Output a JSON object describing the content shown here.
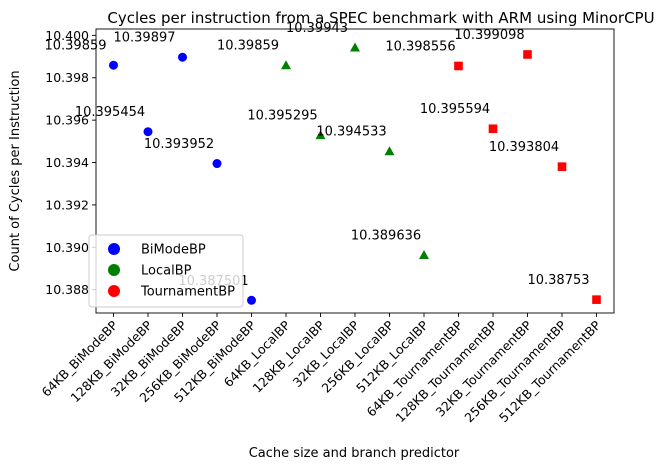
{
  "chart_data": {
    "type": "scatter",
    "title": "Cycles per instruction from a SPEC benchmark with ARM using MinorCPU",
    "xlabel": "Cache size and branch predictor",
    "ylabel": "Count of Cycles per Instruction",
    "categories": [
      "64KB_BiModeBP",
      "128KB_BiModeBP",
      "32KB_BiModeBP",
      "256KB_BiModeBP",
      "512KB_BiModeBP",
      "64KB_LocalBP",
      "128KB_LocalBP",
      "32KB_LocalBP",
      "256KB_LocalBP",
      "512KB_LocalBP",
      "64KB_TournamentBP",
      "128KB_TournamentBP",
      "32KB_TournamentBP",
      "256KB_TournamentBP",
      "512KB_TournamentBP"
    ],
    "ylim": [
      10.3869,
      10.4003
    ],
    "yticks": [
      10.388,
      10.39,
      10.392,
      10.394,
      10.396,
      10.398,
      10.4
    ],
    "ytick_labels": [
      "10.388",
      "10.390",
      "10.392",
      "10.394",
      "10.396",
      "10.398",
      "10.400"
    ],
    "grid": false,
    "legend_position": "lower-left",
    "series": [
      {
        "name": "BiModeBP",
        "color": "#0000ff",
        "marker": "circle",
        "x_index": [
          0,
          1,
          2,
          3,
          4
        ],
        "values": [
          10.39859,
          10.395454,
          10.39897,
          10.393952,
          10.387501
        ],
        "labels": [
          "10.39859",
          "10.395454",
          "10.39897",
          "10.393952",
          "10.387501"
        ]
      },
      {
        "name": "LocalBP",
        "color": "#008000",
        "marker": "triangle",
        "x_index": [
          5,
          6,
          7,
          8,
          9
        ],
        "values": [
          10.39859,
          10.395295,
          10.39943,
          10.394533,
          10.389636
        ],
        "labels": [
          "10.39859",
          "10.395295",
          "10.39943",
          "10.394533",
          "10.389636"
        ]
      },
      {
        "name": "TournamentBP",
        "color": "#ff0000",
        "marker": "square",
        "x_index": [
          10,
          11,
          12,
          13,
          14
        ],
        "values": [
          10.398556,
          10.395594,
          10.399098,
          10.393804,
          10.38753
        ],
        "labels": [
          "10.398556",
          "10.395594",
          "10.399098",
          "10.393804",
          "10.38753"
        ]
      }
    ]
  }
}
